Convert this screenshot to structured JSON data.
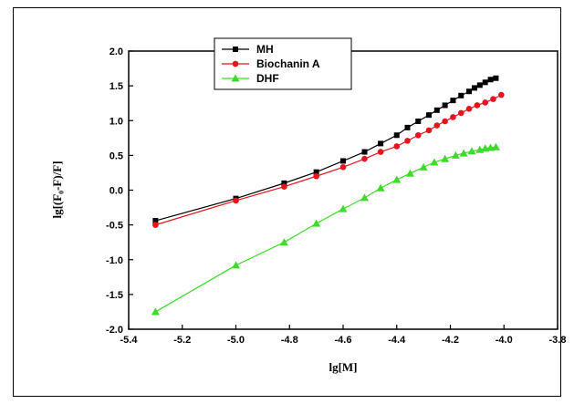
{
  "chart_data": {
    "type": "line",
    "title": "",
    "xlabel": "lg[M]",
    "ylabel": "lg[(F₀-F)/F]",
    "xlim": [
      -5.4,
      -3.8
    ],
    "ylim": [
      -2.0,
      2.0
    ],
    "x_ticks": [
      "-5.4",
      "-5.2",
      "-5.0",
      "-4.8",
      "-4.6",
      "-4.4",
      "-4.2",
      "-4.0",
      "-3.8"
    ],
    "y_ticks": [
      "2.0",
      "1.5",
      "1.0",
      "0.5",
      "0.0",
      "-0.5",
      "-1.0",
      "-1.5",
      "-2.0"
    ],
    "grid": false,
    "legend_position": "top-left",
    "series": [
      {
        "name": "MH",
        "color": "#000000",
        "marker": "square",
        "x": [
          -5.3,
          -5.0,
          -4.82,
          -4.7,
          -4.6,
          -4.52,
          -4.46,
          -4.4,
          -4.36,
          -4.32,
          -4.28,
          -4.25,
          -4.22,
          -4.19,
          -4.16,
          -4.13,
          -4.11,
          -4.09,
          -4.07,
          -4.05,
          -4.03
        ],
        "y": [
          -0.44,
          -0.12,
          0.1,
          0.26,
          0.42,
          0.55,
          0.67,
          0.79,
          0.9,
          0.99,
          1.08,
          1.15,
          1.22,
          1.29,
          1.36,
          1.42,
          1.47,
          1.51,
          1.55,
          1.59,
          1.61
        ]
      },
      {
        "name": "Biochanin A",
        "color": "#e8141c",
        "marker": "circle",
        "x": [
          -5.3,
          -5.0,
          -4.82,
          -4.7,
          -4.6,
          -4.52,
          -4.46,
          -4.4,
          -4.36,
          -4.32,
          -4.28,
          -4.25,
          -4.22,
          -4.19,
          -4.16,
          -4.13,
          -4.1,
          -4.07,
          -4.04,
          -4.01
        ],
        "y": [
          -0.5,
          -0.15,
          0.05,
          0.2,
          0.33,
          0.45,
          0.55,
          0.63,
          0.71,
          0.79,
          0.86,
          0.93,
          0.99,
          1.05,
          1.11,
          1.17,
          1.22,
          1.26,
          1.31,
          1.37
        ]
      },
      {
        "name": "DHF",
        "color": "#3ddc2b",
        "marker": "triangle",
        "x": [
          -5.3,
          -5.0,
          -4.82,
          -4.7,
          -4.6,
          -4.52,
          -4.46,
          -4.4,
          -4.35,
          -4.3,
          -4.26,
          -4.22,
          -4.18,
          -4.15,
          -4.12,
          -4.09,
          -4.07,
          -4.05,
          -4.03
        ],
        "y": [
          -1.75,
          -1.08,
          -0.75,
          -0.48,
          -0.27,
          -0.11,
          0.03,
          0.15,
          0.24,
          0.33,
          0.4,
          0.45,
          0.5,
          0.53,
          0.56,
          0.58,
          0.6,
          0.61,
          0.62
        ]
      }
    ]
  }
}
